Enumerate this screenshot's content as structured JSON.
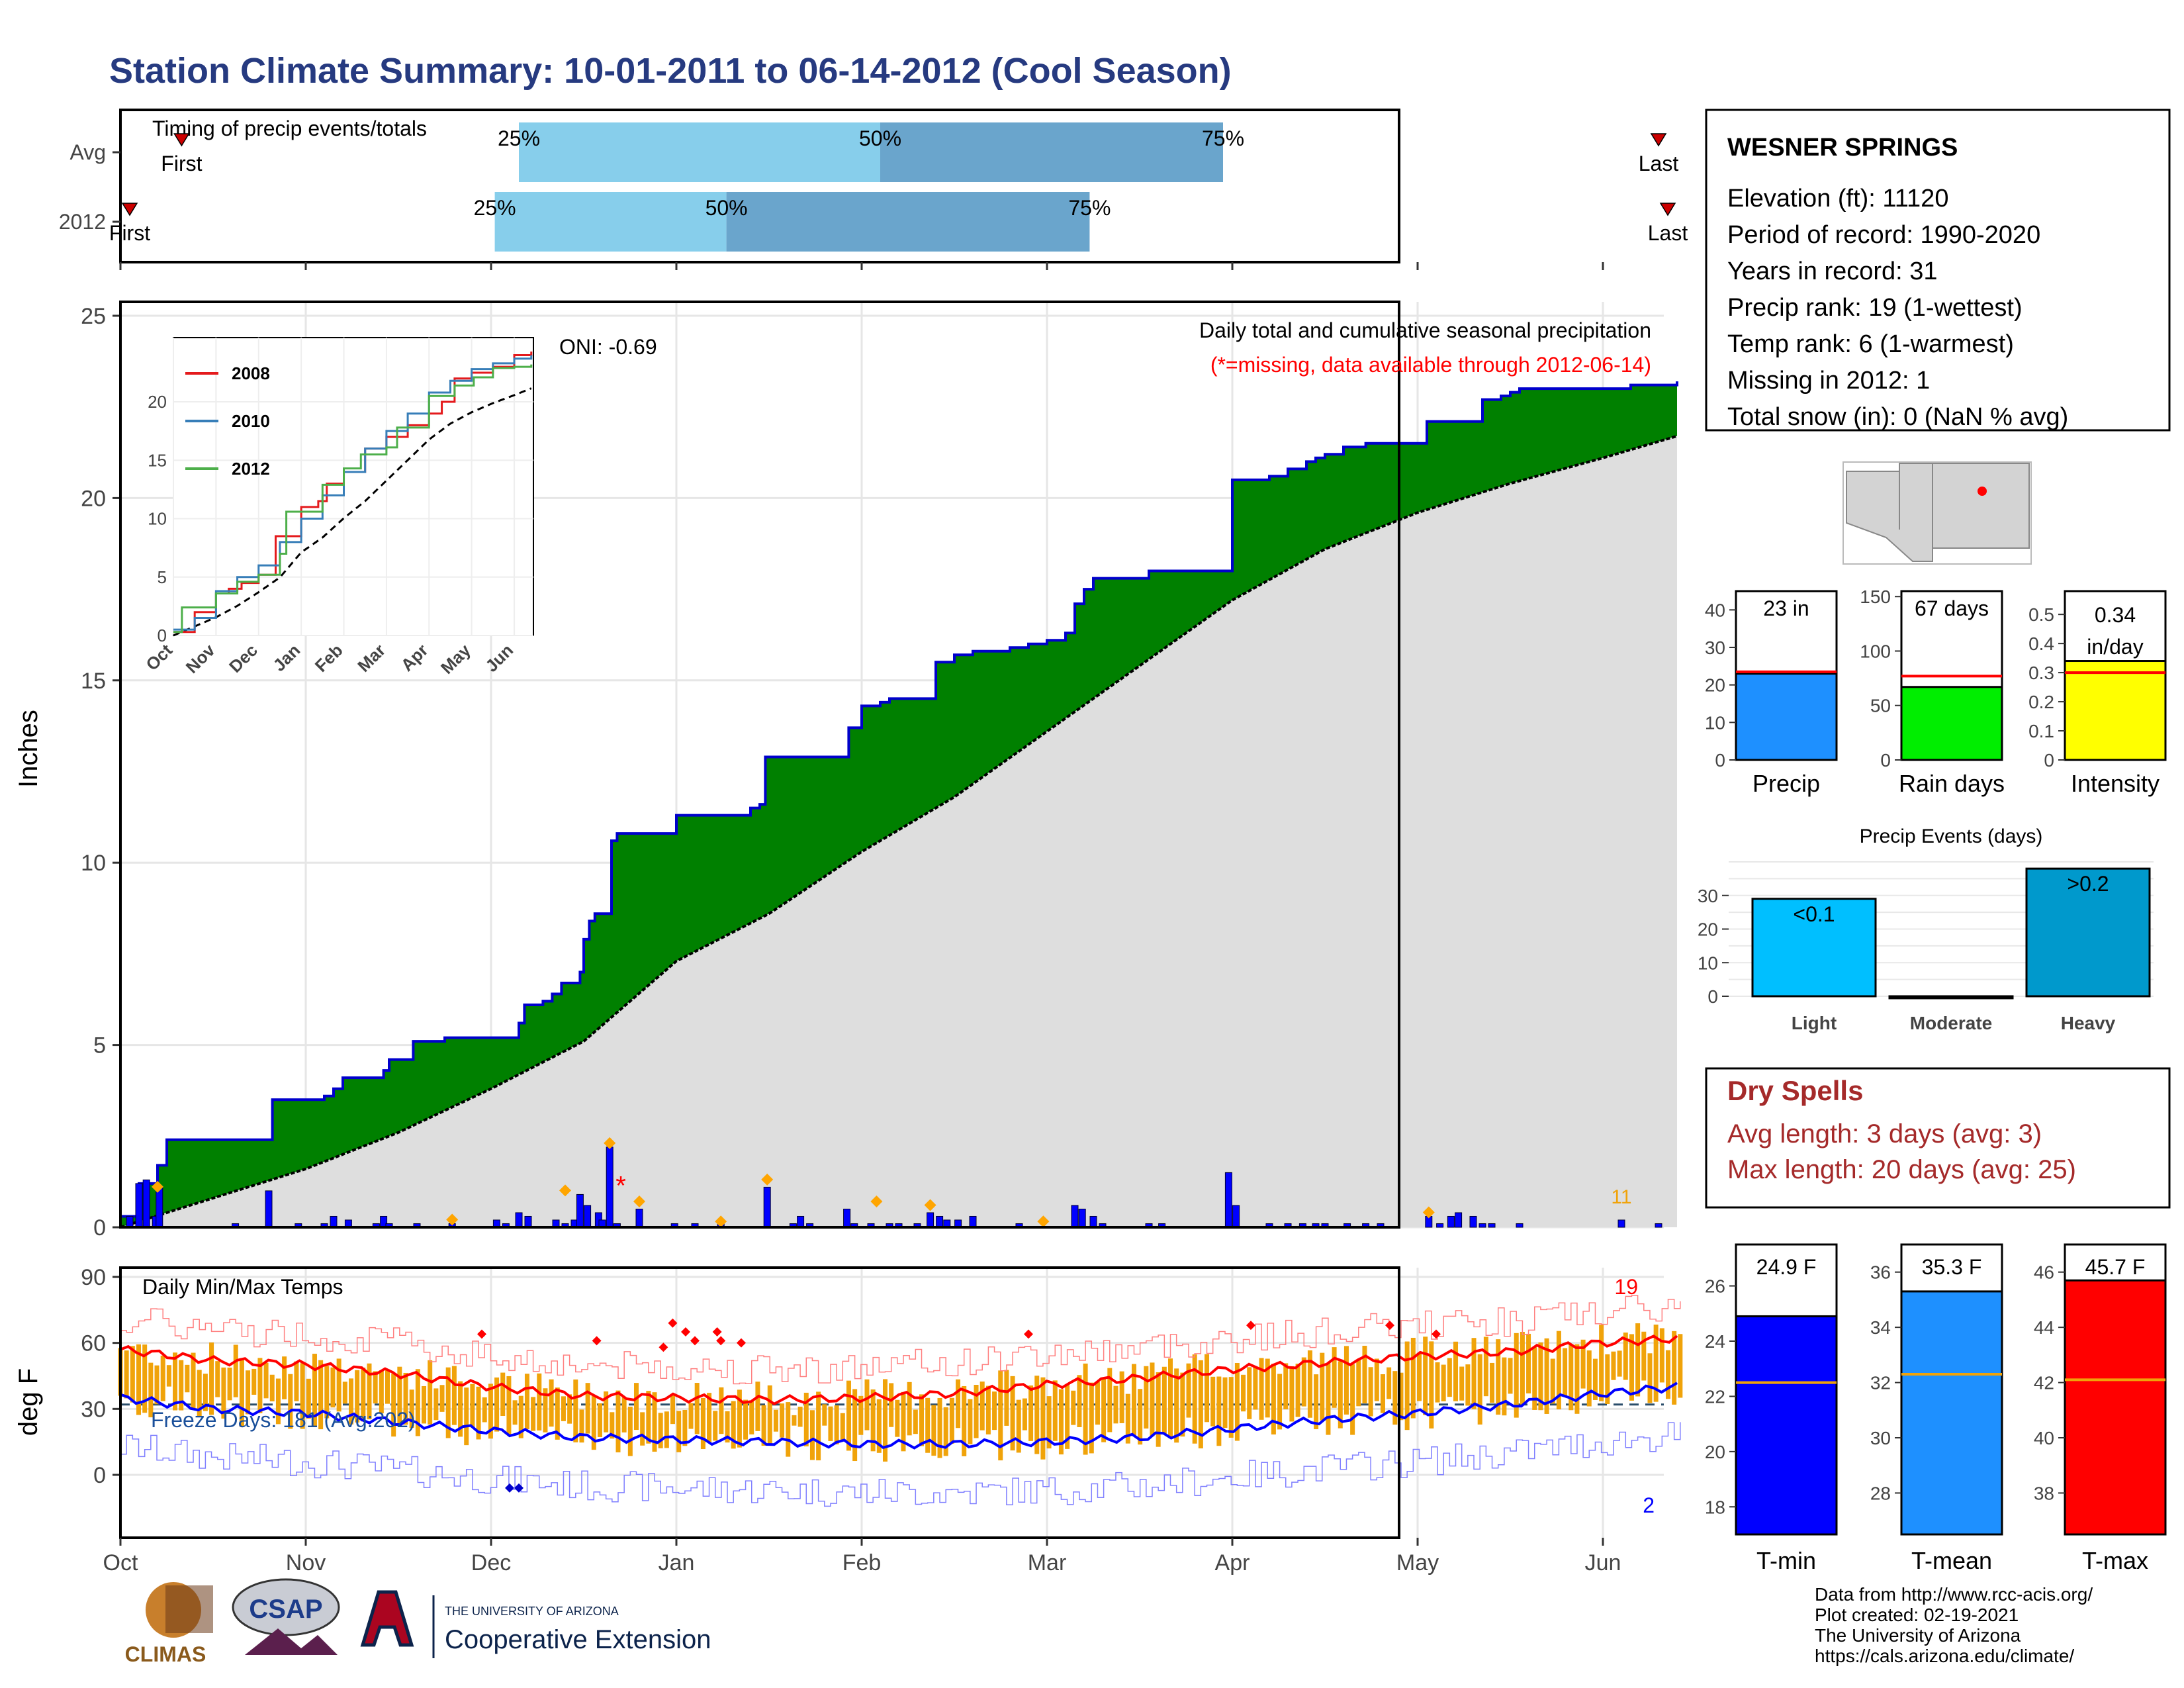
{
  "title": "Station Climate Summary: 10-01-2011 to 06-14-2012 (Cool Season)",
  "timing": {
    "label": "Timing of precip events/totals",
    "rows": [
      {
        "name": "Avg",
        "first_label": "First",
        "last_label": "Last",
        "first": 0.33,
        "p25": 2.15,
        "p50": 4.1,
        "p75": 5.95,
        "last": 8.3
      },
      {
        "name": "2012",
        "first_label": "First",
        "last_label": "Last",
        "first": 0.05,
        "p25": 2.02,
        "p50": 3.27,
        "p75": 5.23,
        "last": 8.35
      }
    ],
    "pct_labels": [
      "25%",
      "50%",
      "75%"
    ]
  },
  "months": [
    "Oct",
    "Nov",
    "Dec",
    "Jan",
    "Feb",
    "Mar",
    "Apr",
    "May",
    "Jun"
  ],
  "precip": {
    "ylabel": "Inches",
    "yticks": [
      0,
      5,
      10,
      15,
      20,
      25
    ],
    "ylim": [
      0,
      25
    ],
    "title_line1": "Daily total and cumulative seasonal precipitation",
    "title_line2": "(*=missing, data available through 2012-06-14)",
    "oni": "ONI: -0.69",
    "count_label": "11",
    "cumulative_2012": [
      [
        0,
        0.3
      ],
      [
        0.1,
        1.2
      ],
      [
        0.2,
        1.3
      ],
      [
        0.2,
        1.7
      ],
      [
        0.25,
        2.4
      ],
      [
        0.8,
        2.4
      ],
      [
        0.82,
        3.5
      ],
      [
        1.05,
        3.5
      ],
      [
        1.1,
        3.6
      ],
      [
        1.15,
        3.8
      ],
      [
        1.2,
        4.1
      ],
      [
        1.4,
        4.1
      ],
      [
        1.42,
        4.3
      ],
      [
        1.45,
        4.6
      ],
      [
        1.55,
        4.6
      ],
      [
        1.58,
        5.1
      ],
      [
        1.75,
        5.2
      ],
      [
        2.1,
        5.2
      ],
      [
        2.15,
        5.6
      ],
      [
        2.18,
        6.1
      ],
      [
        2.28,
        6.2
      ],
      [
        2.33,
        6.4
      ],
      [
        2.38,
        6.7
      ],
      [
        2.45,
        6.7
      ],
      [
        2.48,
        7.0
      ],
      [
        2.5,
        7.9
      ],
      [
        2.53,
        8.4
      ],
      [
        2.56,
        8.6
      ],
      [
        2.63,
        8.6
      ],
      [
        2.65,
        10.6
      ],
      [
        2.68,
        10.8
      ],
      [
        2.85,
        10.8
      ],
      [
        3.0,
        11.3
      ],
      [
        3.2,
        11.3
      ],
      [
        3.4,
        11.5
      ],
      [
        3.45,
        11.6
      ],
      [
        3.48,
        12.9
      ],
      [
        3.9,
        12.9
      ],
      [
        3.93,
        13.7
      ],
      [
        4.0,
        14.3
      ],
      [
        4.1,
        14.4
      ],
      [
        4.15,
        14.5
      ],
      [
        4.35,
        14.5
      ],
      [
        4.4,
        15.5
      ],
      [
        4.5,
        15.7
      ],
      [
        4.6,
        15.8
      ],
      [
        4.75,
        15.8
      ],
      [
        4.8,
        15.9
      ],
      [
        4.9,
        16.0
      ],
      [
        5.0,
        16.1
      ],
      [
        5.1,
        16.3
      ],
      [
        5.15,
        17.1
      ],
      [
        5.2,
        17.5
      ],
      [
        5.25,
        17.8
      ],
      [
        5.5,
        17.8
      ],
      [
        5.55,
        18.0
      ],
      [
        5.98,
        18.0
      ],
      [
        6.0,
        20.5
      ],
      [
        6.15,
        20.5
      ],
      [
        6.2,
        20.6
      ],
      [
        6.3,
        20.8
      ],
      [
        6.4,
        21.0
      ],
      [
        6.45,
        21.1
      ],
      [
        6.5,
        21.2
      ],
      [
        6.6,
        21.4
      ],
      [
        6.7,
        21.4
      ],
      [
        6.72,
        21.5
      ],
      [
        7.0,
        21.5
      ],
      [
        7.05,
        22.1
      ],
      [
        7.3,
        22.1
      ],
      [
        7.35,
        22.7
      ],
      [
        7.45,
        22.8
      ],
      [
        7.5,
        22.9
      ],
      [
        7.55,
        23.0
      ],
      [
        7.8,
        23.0
      ],
      [
        7.85,
        23.0
      ],
      [
        8.1,
        23.0
      ],
      [
        8.15,
        23.1
      ],
      [
        8.3,
        23.1
      ],
      [
        8.35,
        23.1
      ],
      [
        8.4,
        23.2
      ]
    ],
    "cumulative_avg": [
      [
        0,
        0
      ],
      [
        0.5,
        0.8
      ],
      [
        1.0,
        1.6
      ],
      [
        1.5,
        2.6
      ],
      [
        2.0,
        3.8
      ],
      [
        2.5,
        5.1
      ],
      [
        3.0,
        7.3
      ],
      [
        3.5,
        8.6
      ],
      [
        4.0,
        10.3
      ],
      [
        4.5,
        11.8
      ],
      [
        5.0,
        13.6
      ],
      [
        5.5,
        15.4
      ],
      [
        6.0,
        17.2
      ],
      [
        6.5,
        18.6
      ],
      [
        7.0,
        19.6
      ],
      [
        7.5,
        20.4
      ],
      [
        8.0,
        21.1
      ],
      [
        8.4,
        21.7
      ]
    ],
    "daily": [
      [
        0.05,
        0.3
      ],
      [
        0.1,
        1.2
      ],
      [
        0.14,
        1.3
      ],
      [
        0.19,
        0.3
      ],
      [
        0.21,
        1.1
      ],
      [
        0.62,
        0.1
      ],
      [
        0.8,
        1.0
      ],
      [
        0.96,
        0.1
      ],
      [
        1.1,
        0.1
      ],
      [
        1.15,
        0.3
      ],
      [
        1.23,
        0.2
      ],
      [
        1.38,
        0.1
      ],
      [
        1.42,
        0.3
      ],
      [
        1.45,
        0.1
      ],
      [
        1.6,
        0.1
      ],
      [
        1.79,
        0.1
      ],
      [
        2.03,
        0.2
      ],
      [
        2.08,
        0.1
      ],
      [
        2.15,
        0.4
      ],
      [
        2.2,
        0.3
      ],
      [
        2.35,
        0.2
      ],
      [
        2.4,
        0.1
      ],
      [
        2.45,
        0.2
      ],
      [
        2.48,
        0.9
      ],
      [
        2.52,
        0.6
      ],
      [
        2.58,
        0.4
      ],
      [
        2.6,
        0.2
      ],
      [
        2.64,
        2.2
      ],
      [
        2.68,
        0.1
      ],
      [
        2.8,
        0.5
      ],
      [
        2.99,
        0.1
      ],
      [
        3.1,
        0.1
      ],
      [
        3.24,
        0.1
      ],
      [
        3.49,
        1.1
      ],
      [
        3.63,
        0.1
      ],
      [
        3.67,
        0.3
      ],
      [
        3.72,
        0.1
      ],
      [
        3.92,
        0.5
      ],
      [
        3.96,
        0.1
      ],
      [
        4.05,
        0.1
      ],
      [
        4.15,
        0.1
      ],
      [
        4.2,
        0.1
      ],
      [
        4.3,
        0.1
      ],
      [
        4.37,
        0.4
      ],
      [
        4.42,
        0.3
      ],
      [
        4.46,
        0.2
      ],
      [
        4.52,
        0.2
      ],
      [
        4.6,
        0.3
      ],
      [
        4.85,
        0.1
      ],
      [
        5.15,
        0.6
      ],
      [
        5.19,
        0.5
      ],
      [
        5.25,
        0.3
      ],
      [
        5.3,
        0.1
      ],
      [
        5.55,
        0.1
      ],
      [
        5.62,
        0.1
      ],
      [
        5.98,
        1.5
      ],
      [
        6.02,
        0.6
      ],
      [
        6.2,
        0.1
      ],
      [
        6.3,
        0.1
      ],
      [
        6.38,
        0.1
      ],
      [
        6.45,
        0.1
      ],
      [
        6.5,
        0.1
      ],
      [
        6.62,
        0.1
      ],
      [
        6.72,
        0.1
      ],
      [
        6.8,
        0.1
      ],
      [
        7.06,
        0.3
      ],
      [
        7.12,
        0.1
      ],
      [
        7.18,
        0.3
      ],
      [
        7.22,
        0.4
      ],
      [
        7.3,
        0.3
      ],
      [
        7.35,
        0.1
      ],
      [
        7.4,
        0.1
      ],
      [
        7.55,
        0.1
      ],
      [
        8.1,
        0.2
      ],
      [
        8.3,
        0.1
      ]
    ],
    "missing_at": 2.7,
    "diamonds": [
      [
        0.2,
        1.0
      ],
      [
        1.79,
        0.1
      ],
      [
        2.4,
        0.9
      ],
      [
        2.64,
        2.2
      ],
      [
        2.8,
        0.6
      ],
      [
        3.24,
        0.05
      ],
      [
        3.49,
        1.2
      ],
      [
        4.08,
        0.6
      ],
      [
        4.37,
        0.5
      ],
      [
        4.98,
        0.05
      ],
      [
        7.06,
        0.3
      ]
    ],
    "inset": {
      "legend": [
        "2008",
        "2010",
        "2012"
      ],
      "colors": [
        "#e41a1c",
        "#377eb8",
        "#4daf4a"
      ],
      "yticks": [
        0,
        5,
        10,
        15,
        20
      ],
      "xlabels": [
        "Oct",
        "Nov",
        "Dec",
        "Jan",
        "Feb",
        "Mar",
        "Apr",
        "May",
        "Jun"
      ]
    }
  },
  "temps": {
    "ylabel": "deg F",
    "title": "Daily Min/Max Temps",
    "yticks": [
      0,
      30,
      60,
      90
    ],
    "ylim": [
      -25,
      95
    ],
    "freeze_label": "Freeze Days: 181 (Avg:202)",
    "count_high": "19",
    "count_low": "2",
    "avg_max": [
      [
        0,
        57
      ],
      [
        0.5,
        52
      ],
      [
        1,
        50
      ],
      [
        1.5,
        46
      ],
      [
        2,
        40
      ],
      [
        2.5,
        36
      ],
      [
        3,
        35
      ],
      [
        3.5,
        34
      ],
      [
        4,
        35
      ],
      [
        4.5,
        37
      ],
      [
        5,
        41
      ],
      [
        5.5,
        44
      ],
      [
        6,
        48
      ],
      [
        6.5,
        51
      ],
      [
        7,
        54
      ],
      [
        7.5,
        56
      ],
      [
        8,
        60
      ],
      [
        8.4,
        62
      ]
    ],
    "avg_min": [
      [
        0,
        35
      ],
      [
        0.5,
        30
      ],
      [
        1,
        28
      ],
      [
        1.5,
        24
      ],
      [
        2,
        20
      ],
      [
        2.5,
        17
      ],
      [
        3,
        16
      ],
      [
        3.5,
        15
      ],
      [
        4,
        14
      ],
      [
        4.5,
        14
      ],
      [
        5,
        15
      ],
      [
        5.5,
        17
      ],
      [
        6,
        21
      ],
      [
        6.5,
        25
      ],
      [
        7,
        28
      ],
      [
        7.5,
        32
      ],
      [
        8,
        37
      ],
      [
        8.4,
        40
      ]
    ]
  },
  "station": {
    "name": "WESNER SPRINGS",
    "lines": [
      "Elevation (ft): 11120",
      "Period of record: 1990-2020",
      "Years in record: 31",
      "Precip rank: 19 (1-wettest)",
      "Temp rank: 6 (1-warmest)",
      "Missing in 2012: 1",
      "Total snow (in): 0 (NaN % avg)"
    ]
  },
  "summary_bars": [
    {
      "label": "Precip",
      "value": 23,
      "avg": 23.5,
      "text": "23 in",
      "yticks": [
        0,
        10,
        20,
        30,
        40
      ],
      "ymax": 45,
      "color": "#1e90ff"
    },
    {
      "label": "Rain days",
      "value": 67,
      "avg": 77,
      "text": "67 days",
      "yticks": [
        0,
        50,
        100,
        150
      ],
      "ymax": 155,
      "color": "#00ee00"
    },
    {
      "label": "Intensity",
      "value": 0.34,
      "avg": 0.3,
      "text": "0.34 in/day",
      "yticks": [
        0.0,
        0.1,
        0.2,
        0.3,
        0.4,
        0.5
      ],
      "ymax": 0.58,
      "color": "#ffff00"
    }
  ],
  "events": {
    "title": "Precip Events (days)",
    "categories": [
      "Light",
      "Moderate",
      "Heavy"
    ],
    "values": [
      29,
      0,
      38
    ],
    "labels": [
      "<0.1",
      "",
      ">0.2"
    ],
    "colors": [
      "#00bfff",
      "#1f77b4",
      "#0099cc"
    ],
    "yticks": [
      0,
      10,
      20,
      30
    ]
  },
  "dry_spells": {
    "title": "Dry Spells",
    "line1": "Avg length: 3 days (avg: 3)",
    "line2": "Max length: 20 days (avg: 25)"
  },
  "temp_bars": [
    {
      "label": "T-min",
      "value": 24.9,
      "avg": 22.5,
      "text": "24.9 F",
      "yticks": [
        18,
        20,
        22,
        24,
        26
      ],
      "ymin": 17,
      "ymax": 27.5,
      "color": "#0000ff"
    },
    {
      "label": "T-mean",
      "value": 35.3,
      "avg": 32.3,
      "text": "35.3 F",
      "yticks": [
        28,
        30,
        32,
        34,
        36
      ],
      "ymin": 26.5,
      "ymax": 37,
      "color": "#1e90ff"
    },
    {
      "label": "T-max",
      "value": 45.7,
      "avg": 42.1,
      "text": "45.7 F",
      "yticks": [
        38,
        40,
        42,
        44,
        46
      ],
      "ymin": 36.5,
      "ymax": 47,
      "color": "#ff0000"
    }
  ],
  "footer": {
    "lines": [
      "Data from http://www.rcc-acis.org/",
      "Plot created: 02-19-2021",
      "The University of Arizona",
      "https://cals.arizona.edu/climate/"
    ],
    "logo1": "CLIMAS",
    "logo2": "CSAP",
    "logo3_small": "THE UNIVERSITY OF ARIZONA",
    "logo3_big": "Cooperative Extension"
  },
  "colors": {
    "title": "#263a80",
    "green": "#008000",
    "cum_line": "#0000cc",
    "dry": "#a52a2a",
    "orange": "#f0a30a"
  }
}
